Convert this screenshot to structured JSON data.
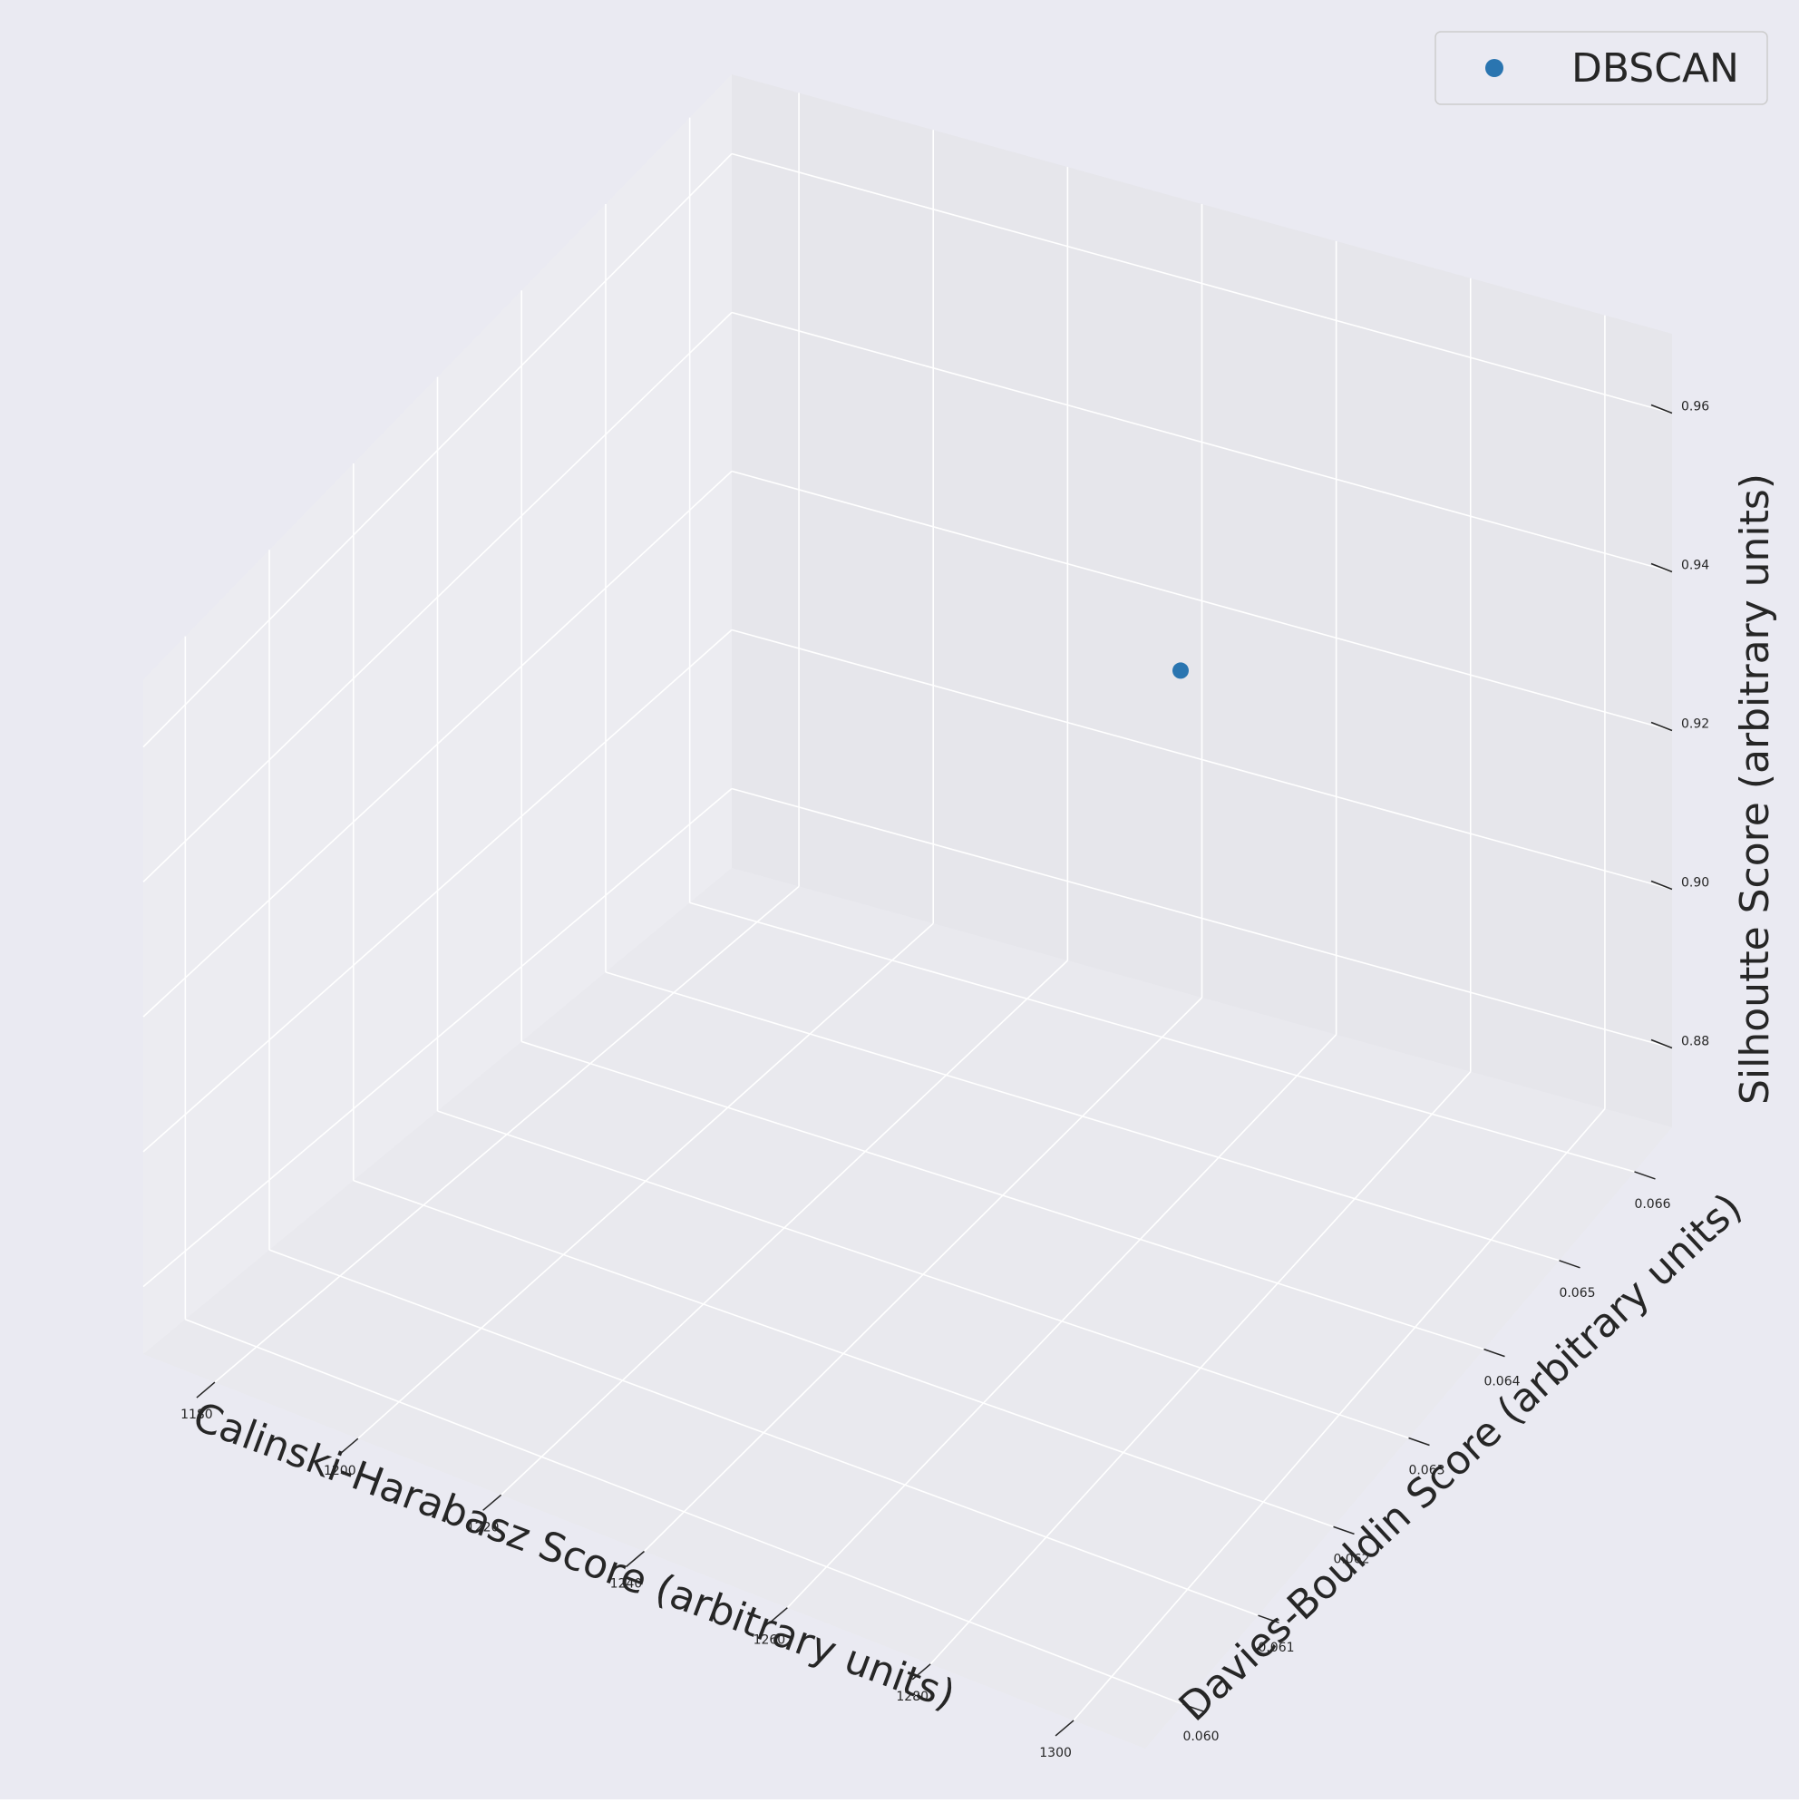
{
  "chart_data": {
    "type": "scatter",
    "projection": "3d",
    "title": "",
    "xlabel": "Calinski-Harabasz Score (arbitrary units)",
    "ylabel": "Davies-Bouldin Score (arbitrary units)",
    "zlabel": "Silhoutte Score (arbitrary units)",
    "xlim": [
      1170,
      1310
    ],
    "ylim": [
      0.0595,
      0.0665
    ],
    "zlim": [
      0.87,
      0.97
    ],
    "x_ticks": [
      "1180",
      "1200",
      "1220",
      "1240",
      "1260",
      "1280",
      "1300"
    ],
    "y_ticks": [
      "0.060",
      "0.061",
      "0.062",
      "0.063",
      "0.064",
      "0.065",
      "0.066"
    ],
    "z_ticks": [
      "0.88",
      "0.90",
      "0.92",
      "0.94",
      "0.96"
    ],
    "grid": true,
    "legend_position": "top-right",
    "series": [
      {
        "name": "DBSCAN",
        "color": "#2a75b0",
        "points": [
          {
            "x": 1239.2,
            "y": 0.0663,
            "z": 0.9132
          }
        ]
      }
    ]
  },
  "style": {
    "figure_bg": "#eaeaf2",
    "grid_color": "#ffffff",
    "pane_left": "#ececf1",
    "pane_back": "#e6e6eb",
    "pane_floor": "#e9e9ee"
  }
}
